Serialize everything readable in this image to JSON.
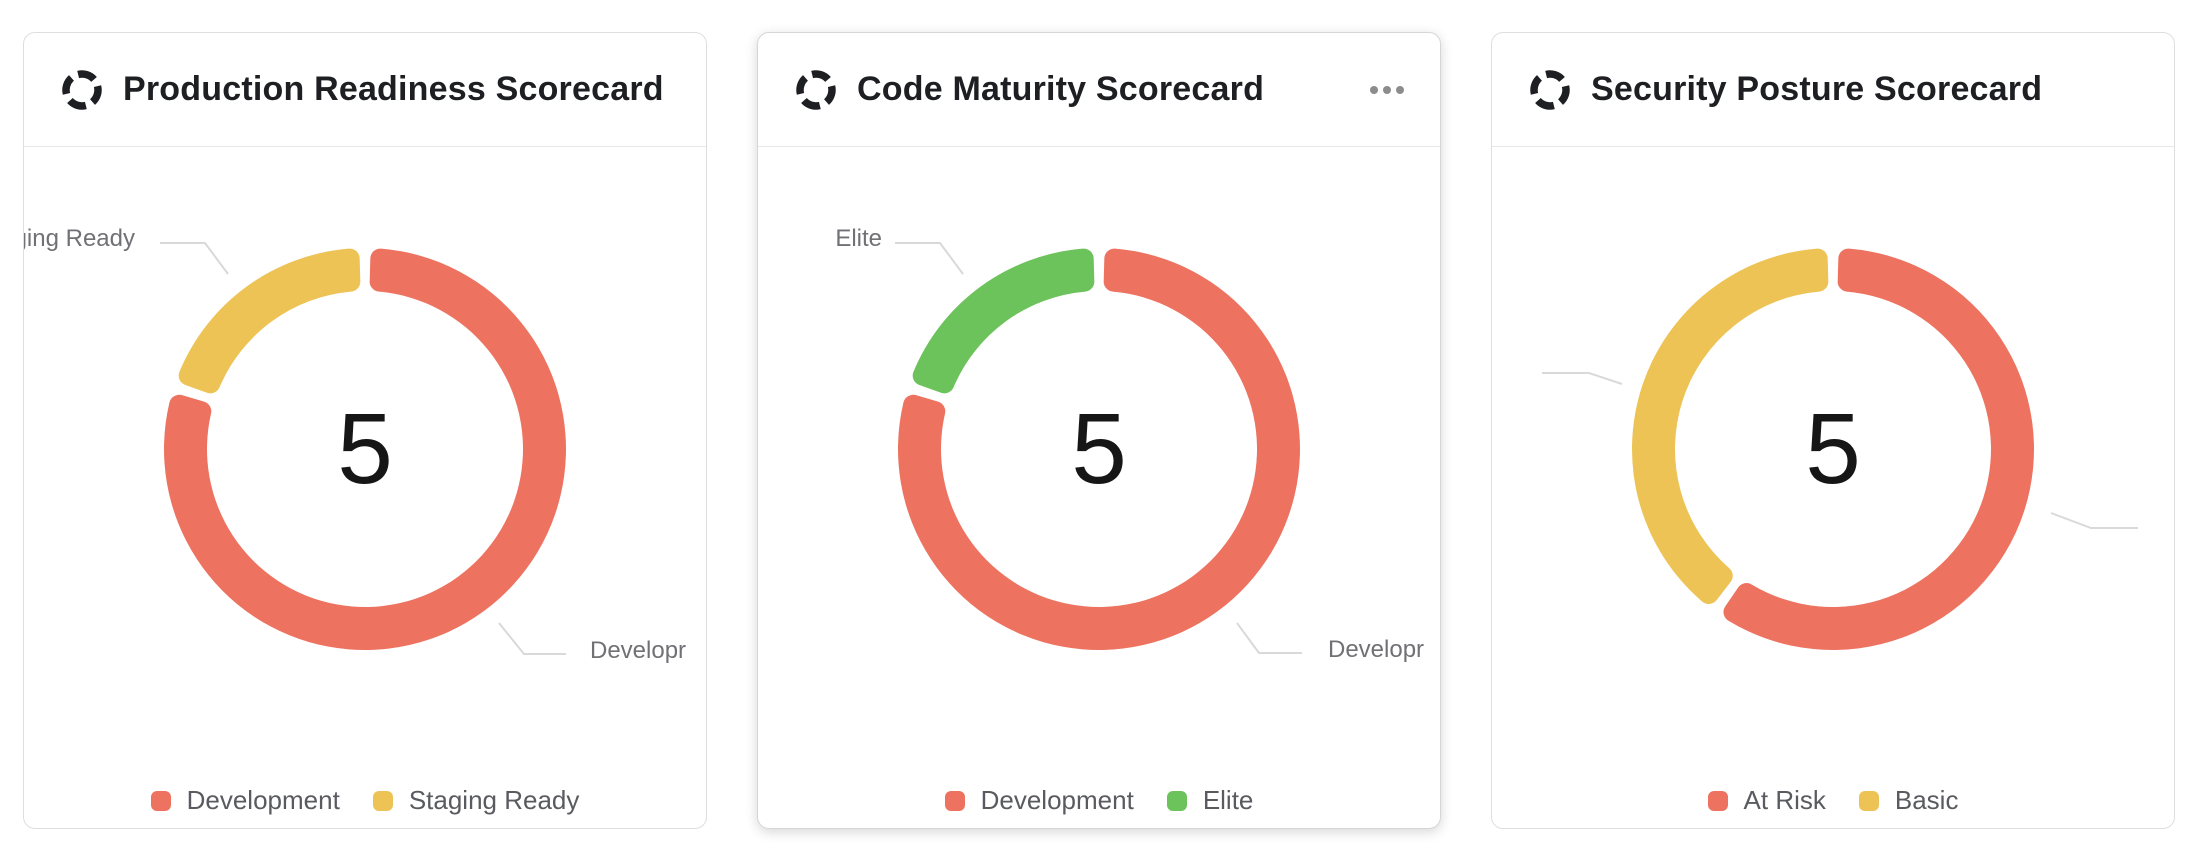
{
  "chart_data": [
    {
      "type": "pie",
      "subtype": "donut",
      "title": "Production Readiness Scorecard",
      "center_label": "5",
      "total": 5,
      "legend_position": "bottom",
      "segments": [
        {
          "label": "Development",
          "value": 4,
          "color": "#ED7360"
        },
        {
          "label": "Staging Ready",
          "value": 1,
          "color": "#EDC355"
        }
      ],
      "callout_labels": {
        "left": "Staging Ready",
        "right": "Developr"
      },
      "legend": [
        {
          "label": "Development",
          "color": "#ED7360"
        },
        {
          "label": "Staging Ready",
          "color": "#EDC355"
        }
      ]
    },
    {
      "type": "pie",
      "subtype": "donut",
      "title": "Code Maturity Scorecard",
      "center_label": "5",
      "total": 5,
      "legend_position": "bottom",
      "segments": [
        {
          "label": "Development",
          "value": 4,
          "color": "#ED7360"
        },
        {
          "label": "Elite",
          "value": 1,
          "color": "#6CC25B"
        }
      ],
      "callout_labels": {
        "left": "Elite",
        "right": "Developr"
      },
      "legend": [
        {
          "label": "Development",
          "color": "#ED7360"
        },
        {
          "label": "Elite",
          "color": "#6CC25B"
        }
      ]
    },
    {
      "type": "pie",
      "subtype": "donut",
      "title": "Security Posture Scorecard",
      "center_label": "5",
      "total": 5,
      "legend_position": "bottom",
      "segments": [
        {
          "label": "At Risk",
          "value": 3,
          "color": "#ED7360"
        },
        {
          "label": "Basic",
          "value": 2,
          "color": "#EDC355"
        }
      ],
      "callout_labels": {
        "left": "",
        "right": ""
      },
      "legend": [
        {
          "label": "At Risk",
          "color": "#ED7360"
        },
        {
          "label": "Basic",
          "color": "#EDC355"
        }
      ]
    }
  ],
  "cards": [
    {
      "title": "Production Readiness Scorecard",
      "menu_visible": false
    },
    {
      "title": "Code Maturity Scorecard",
      "menu_visible": true
    },
    {
      "title": "Security Posture Scorecard",
      "menu_visible": false
    }
  ],
  "colors": {
    "development_red": "#ED7360",
    "staging_yellow": "#EDC355",
    "elite_green": "#6CC25B",
    "callout_line": "#d9d9d9",
    "label_gray": "#717175"
  }
}
